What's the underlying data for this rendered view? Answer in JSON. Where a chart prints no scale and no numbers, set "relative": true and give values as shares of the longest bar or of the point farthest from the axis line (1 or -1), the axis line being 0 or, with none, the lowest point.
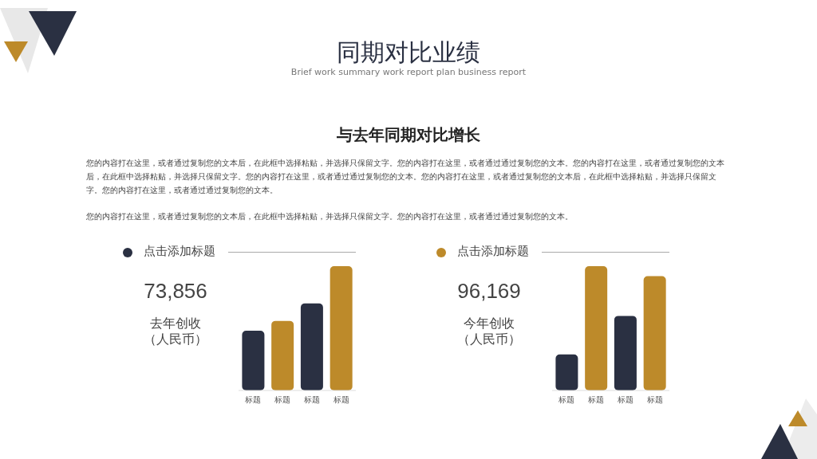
{
  "chart_data": [
    {
      "type": "other",
      "title": "同期对比业绩",
      "subtitle": "Brief work summary work report plan business report",
      "annotations": [
        "与去年同期对比增长",
        "您的内容打在这里，或者通过复制您的文本后，在此框中选择粘贴，并选择只保留文字。您的内容打在这里，或者通过通过复制您的文本。您的内容打在这里，或者通过复制您的文本后，在此框中选择粘贴，并选择只保留文字。您的内容打在这里，或者通过通过复制您的文本。您的内容打在这里，或者通过复制您的文本后，在此框中选择粘贴，并选择只保留文字。您的内容打在这里，或者通过通过复制您的文本。",
        "您的内容打在这里，或者通过复制您的文本后，在此框中选择粘贴，并选择只保留文字。您的内容打在这里，或者通过通过复制您的文本。"
      ]
    },
    {
      "type": "bar",
      "title": "点击添加标题",
      "categories": [
        "标题",
        "标题",
        "标题",
        "标题"
      ],
      "values": [
        0.48,
        0.56,
        0.7,
        1
      ],
      "colors": [
        "#2a3042",
        "#bd8a2a",
        "#2a3042",
        "#bd8a2a"
      ],
      "relative": true,
      "annotations": [
        "73,856",
        "去年创收",
        "（人民币）"
      ]
    },
    {
      "type": "bar",
      "title": "点击添加标题",
      "categories": [
        "标题",
        "标题",
        "标题",
        "标题"
      ],
      "values": [
        0.29,
        1,
        0.6,
        0.92
      ],
      "colors": [
        "#2a3042",
        "#bd8a2a",
        "#2a3042",
        "#bd8a2a"
      ],
      "relative": true,
      "annotations": [
        "96,169",
        "今年创收",
        "（人民币）"
      ]
    }
  ]
}
